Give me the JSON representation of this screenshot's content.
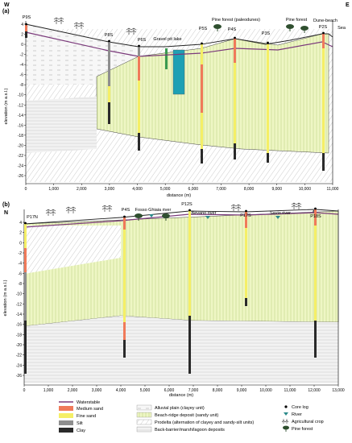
{
  "panel_a": {
    "label": "(a)",
    "left_dir": "W",
    "right_dir": "E",
    "ylabel": "elevation (m a.s.l.)",
    "xlabel": "distance (m)",
    "y_ticks": [
      "4",
      "2",
      "0",
      "-2",
      "-4",
      "-6",
      "-8",
      "-10",
      "-12",
      "-14",
      "-16",
      "-18",
      "-20",
      "-22",
      "-24",
      "-26"
    ],
    "x_ticks": [
      "0",
      "1,000",
      "2,000",
      "3,000",
      "4,000",
      "5,000",
      "6,000",
      "7,000",
      "8,000",
      "9,000",
      "10,000",
      "11,000"
    ],
    "wells": [
      "P9S",
      "P8S",
      "P6S",
      "P5S",
      "P4S",
      "P3S",
      "P2S"
    ],
    "annotations": {
      "gravel_pit": "Gravel pit lake",
      "pine_paleo": "Pine forest (paleodunes)",
      "pine": "Pine forest",
      "dune_beach": "Dune-beach",
      "sea": "Sea"
    }
  },
  "panel_b": {
    "label": "(b)",
    "left_dir": "N",
    "right_dir": "S",
    "ylabel": "elevation (m a.s.l.)",
    "xlabel": "distance (m)",
    "y_ticks": [
      "4",
      "2",
      "0",
      "-2",
      "-4",
      "-6",
      "-8",
      "-10",
      "-12",
      "-14",
      "-16",
      "-18",
      "-20",
      "-22",
      "-24",
      "-26"
    ],
    "x_ticks": [
      "0",
      "1,000",
      "2,000",
      "3,000",
      "4,000",
      "5,000",
      "6,000",
      "7,000",
      "8,000",
      "9,000",
      "10,000",
      "11,000",
      "12,000",
      "13,000"
    ],
    "wells": [
      "P17N",
      "P4S",
      "P12S",
      "P17S",
      "P18S"
    ],
    "annotations": {
      "fosso": "Fosso Ghiaia river",
      "bevano": "Bevano river",
      "savio": "Savio river"
    }
  },
  "legend": {
    "waterstable": "Waterstable",
    "medium_sand": "Medium sand",
    "fine_sand": "Fine sand",
    "silt": "Silt",
    "clay": "Clay",
    "alluvial": "Alluvial plain (clayey unit)",
    "beach_ridge": "Beach-ridge deposit (sandy unit)",
    "prodelta": "Prodelta (alternation of clayey and sandy-silt units)",
    "back_barrier": "Back-barrier/marsh/lagoon deposits",
    "core_log": "Core log",
    "river": "River",
    "agri": "Agricultural crop",
    "pine_forest": "Pine forest"
  },
  "colors": {
    "medium_sand": "#f07a5a",
    "fine_sand": "#f5ef66",
    "silt": "#8e8e8e",
    "clay": "#2a2a2a",
    "beach_ridge": "#e9f3b6",
    "water": "#7b5a8a",
    "lake": "#1ea0b4",
    "river": "#2a8a8a"
  }
}
